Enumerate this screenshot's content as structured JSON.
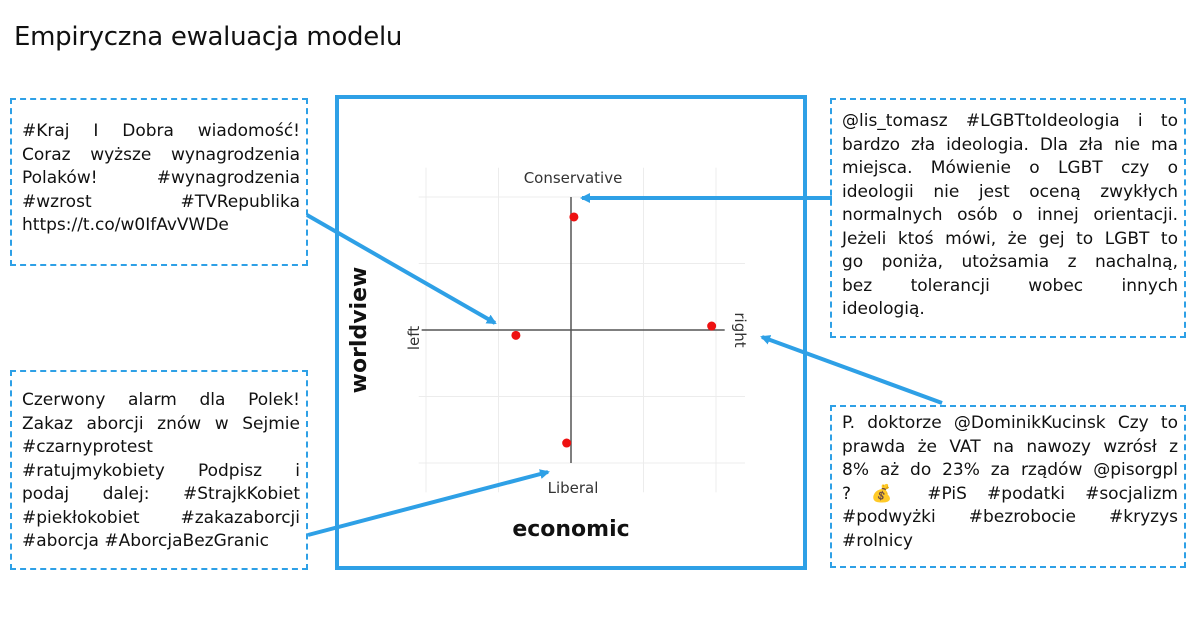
{
  "title": "Empiryczna ewaluacja modelu",
  "chart_data": {
    "type": "scatter",
    "xlabel": "economic",
    "ylabel": "worldview",
    "x_axis_ends": [
      "left",
      "right"
    ],
    "y_axis_ends": [
      "Liberal",
      "Conservative"
    ],
    "xlim": [
      -1,
      1
    ],
    "ylim": [
      -1,
      1
    ],
    "grid": true,
    "points": [
      {
        "x": 0.02,
        "y": 0.85
      },
      {
        "x": -0.38,
        "y": -0.04
      },
      {
        "x": 0.97,
        "y": 0.03
      },
      {
        "x": -0.03,
        "y": -0.85
      }
    ],
    "point_color": "#ee1111"
  },
  "tweets": {
    "top_left": {
      "lines": [
        "#Kraj I Dobra wiadomość!",
        "Coraz wyższe wynagrodzenia",
        "Polaków! #wynagrodzenia",
        "#wzrost #TVRepublika",
        "https://t.co/w0IfAvVWDe"
      ]
    },
    "bottom_left": {
      "lines": [
        "Czerwony alarm dla Polek!",
        "Zakaz aborcji znów w Sejmie",
        "#czarnyprotest",
        "#ratujmykobiety Podpisz i",
        "podaj dalej: #StrajkKobiet",
        "#piekłokobiet #zakazaborcji",
        "#aborcja #AborcjaBezGranic"
      ]
    },
    "top_right": {
      "lines": [
        "@lis_tomasz #LGBTtoIdeologia i to",
        "bardzo zła ideologia. Dla zła nie ma",
        "miejsca. Mówienie o LGBT czy o",
        "ideologii nie jest oceną zwykłych",
        "normalnych osób o innej orientacji.",
        "Jeżeli ktoś mówi, że gej to LGBT to",
        "go poniża, utożsamia z nachalną,",
        "bez tolerancji wobec innych",
        "ideologią."
      ]
    },
    "bottom_right": {
      "lines": [
        "P. doktorze @DominikKucinsk Czy to",
        "prawda że VAT na nawozy wzrósł z",
        "8% aż do 23% za rządów @pisorgpl",
        "? 💰 #PiS #podatki #socjalizm",
        "#podwyżki #bezrobocie #kryzys",
        "#rolnicy"
      ]
    }
  },
  "colors": {
    "accent": "#2ea0e6",
    "point": "#ee1111",
    "axis": "#555555",
    "grid": "#ececec"
  }
}
